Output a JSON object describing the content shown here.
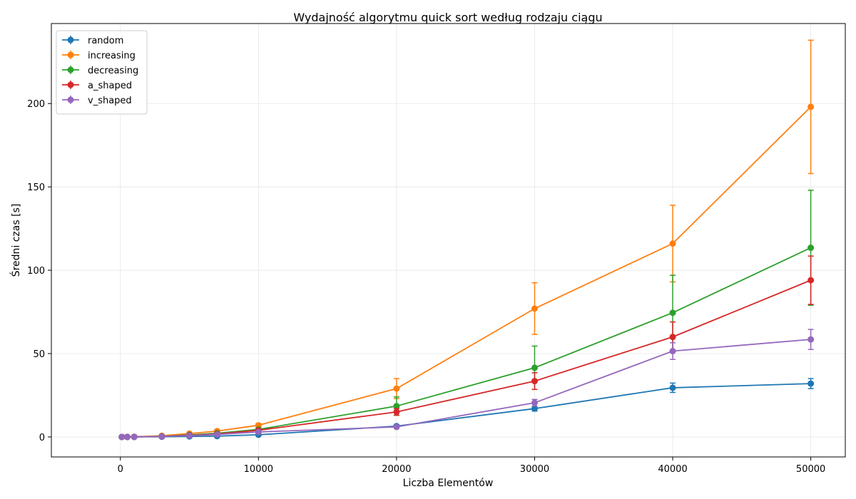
{
  "chart_data": {
    "type": "line",
    "title": "Wydajność algorytmu quick sort według rodzaju ciągu",
    "xlabel": "Liczba Elementów",
    "ylabel": "Średni czas [s]",
    "xlim": [
      -5000,
      52500
    ],
    "ylim": [
      -12,
      248
    ],
    "x_ticks": [
      0,
      10000,
      20000,
      30000,
      40000,
      50000
    ],
    "y_ticks": [
      0,
      50,
      100,
      150,
      200
    ],
    "grid": true,
    "legend_position": "top-left",
    "x": [
      100,
      500,
      1000,
      3000,
      5000,
      7000,
      10000,
      20000,
      30000,
      40000,
      50000
    ],
    "series": [
      {
        "name": "random",
        "color": "#1f77b4",
        "values": [
          0,
          0.01,
          0.02,
          0.1,
          0.3,
          0.5,
          1.3,
          6.5,
          17,
          29.5,
          32
        ],
        "errors": [
          0,
          0,
          0,
          0.05,
          0.1,
          0.1,
          0.3,
          0.8,
          1.5,
          2.8,
          3.0
        ]
      },
      {
        "name": "increasing",
        "color": "#ff7f0e",
        "values": [
          0,
          0.02,
          0.08,
          0.7,
          2,
          3.5,
          7,
          29,
          77,
          116,
          198
        ],
        "errors": [
          0,
          0,
          0.02,
          0.1,
          0.3,
          0.5,
          1,
          6,
          15.5,
          23,
          40
        ]
      },
      {
        "name": "decreasing",
        "color": "#2ca02c",
        "values": [
          0,
          0.01,
          0.05,
          0.4,
          1.2,
          2.2,
          4.5,
          18.5,
          41.5,
          74.5,
          113.5
        ],
        "errors": [
          0,
          0,
          0.01,
          0.1,
          0.2,
          0.4,
          0.8,
          5.5,
          13,
          22.5,
          34.5
        ]
      },
      {
        "name": "a_shaped",
        "color": "#d62728",
        "values": [
          0,
          0.01,
          0.05,
          0.3,
          1,
          1.8,
          4,
          15,
          33.5,
          60,
          94
        ],
        "errors": [
          0,
          0,
          0.01,
          0.05,
          0.2,
          0.3,
          0.6,
          2,
          5,
          9,
          14.5
        ]
      },
      {
        "name": "v_shaped",
        "color": "#9467bd",
        "values": [
          0,
          0.01,
          0.03,
          0.3,
          0.8,
          1.5,
          3,
          6,
          20.5,
          51.5,
          58.5
        ],
        "errors": [
          0,
          0,
          0.01,
          0.05,
          0.1,
          0.2,
          0.5,
          0.8,
          2,
          5,
          6
        ]
      }
    ]
  }
}
